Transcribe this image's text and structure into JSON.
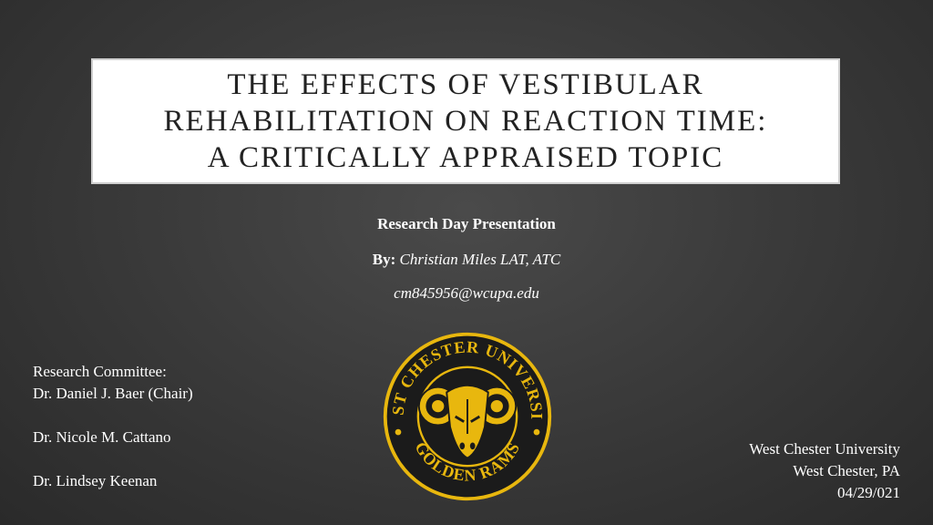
{
  "title": {
    "lines": [
      "THE EFFECTS OF VESTIBULAR",
      "REHABILITATION ON REACTION TIME:",
      "A CRITICALLY APPRAISED TOPIC"
    ]
  },
  "presentation": {
    "heading": "Research Day Presentation",
    "by_label": "By:",
    "author": "Christian Miles LAT, ATC",
    "email": "cm845956@wcupa.edu"
  },
  "committee": {
    "label": "Research Committee:",
    "chair": "Dr. Daniel J. Baer (Chair)",
    "member1": "Dr. Nicole M. Cattano",
    "member2": "Dr. Lindsey Keenan"
  },
  "affiliation": {
    "university": "West Chester University",
    "location": "West Chester, PA",
    "date": "04/29/021"
  },
  "logo": {
    "top_text": "WEST CHESTER UNIVERSITY",
    "bottom_text": "GOLDEN RAMS",
    "gold": "#e8b70e",
    "dark": "#1b1b1b"
  }
}
